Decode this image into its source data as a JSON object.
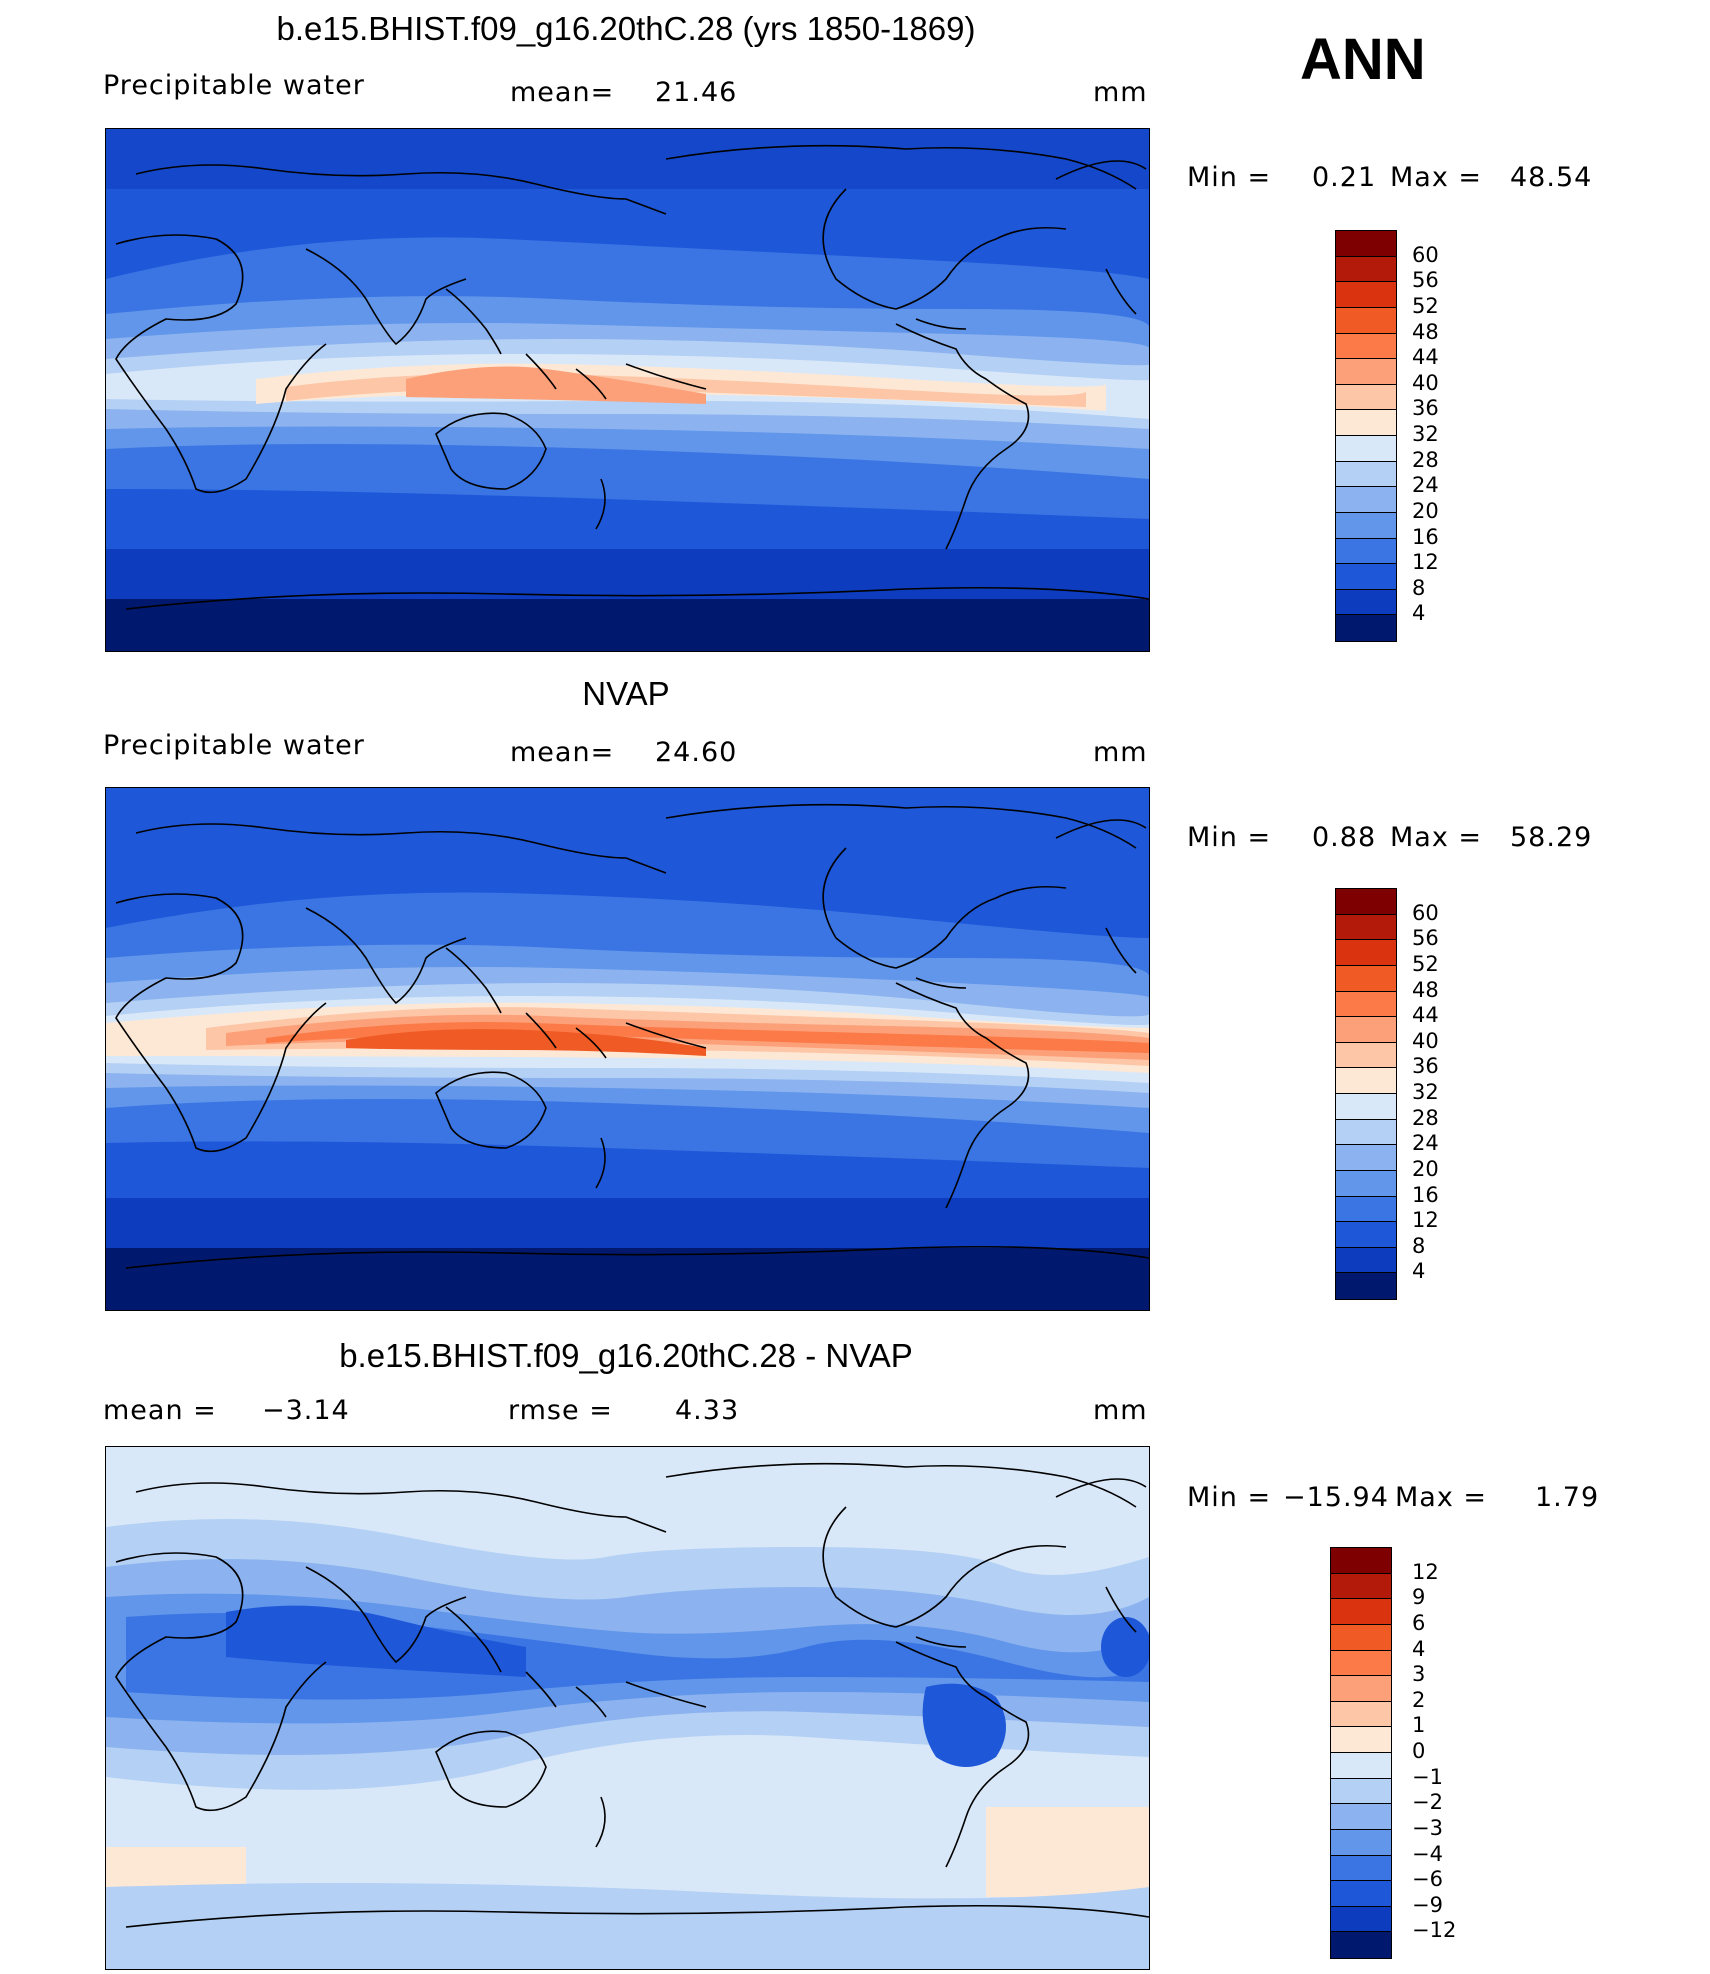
{
  "season": "ANN",
  "panels": [
    {
      "id": "model",
      "title": "b.e15.BHIST.f09_g16.20thC.28 (yrs 1850-1869)",
      "variable": "Precipitable water",
      "mean_label": "mean=",
      "mean_value": "21.46",
      "units": "mm",
      "minmax": {
        "min_label": "Min =",
        "min_value": "0.21",
        "max_label": "Max =",
        "max_value": "48.54"
      },
      "colorbar": {
        "ticks": [
          "60",
          "56",
          "52",
          "48",
          "44",
          "40",
          "36",
          "32",
          "28",
          "24",
          "20",
          "16",
          "12",
          "8",
          "4"
        ],
        "colors": [
          "#7f0000",
          "#b41a0a",
          "#d9330f",
          "#f05a24",
          "#fb7a48",
          "#fca07a",
          "#fdc6a6",
          "#fde8d6",
          "#d9e8f9",
          "#b4d0f4",
          "#8cb3ef",
          "#6196ea",
          "#3a75e3",
          "#1f57d9",
          "#0d3cbf",
          "#00196f"
        ]
      }
    },
    {
      "id": "obs",
      "title": "NVAP",
      "variable": "Precipitable water",
      "mean_label": "mean=",
      "mean_value": "24.60",
      "units": "mm",
      "minmax": {
        "min_label": "Min =",
        "min_value": "0.88",
        "max_label": "Max =",
        "max_value": "58.29"
      },
      "colorbar": {
        "ticks": [
          "60",
          "56",
          "52",
          "48",
          "44",
          "40",
          "36",
          "32",
          "28",
          "24",
          "20",
          "16",
          "12",
          "8",
          "4"
        ],
        "colors": [
          "#7f0000",
          "#b41a0a",
          "#d9330f",
          "#f05a24",
          "#fb7a48",
          "#fca07a",
          "#fdc6a6",
          "#fde8d6",
          "#d9e8f9",
          "#b4d0f4",
          "#8cb3ef",
          "#6196ea",
          "#3a75e3",
          "#1f57d9",
          "#0d3cbf",
          "#00196f"
        ]
      }
    },
    {
      "id": "diff",
      "title": "b.e15.BHIST.f09_g16.20thC.28 - NVAP",
      "mean_label": "mean =",
      "mean_value": "−3.14",
      "rmse_label": "rmse =",
      "rmse_value": "4.33",
      "units": "mm",
      "minmax": {
        "min_label": "Min =",
        "min_value": "−15.94",
        "max_label": "Max =",
        "max_value": "1.79"
      },
      "colorbar": {
        "ticks": [
          "12",
          "9",
          "6",
          "4",
          "3",
          "2",
          "1",
          "0",
          "−1",
          "−2",
          "−3",
          "−4",
          "−6",
          "−9",
          "−12"
        ],
        "colors": [
          "#7f0000",
          "#b41a0a",
          "#d9330f",
          "#f05a24",
          "#fb7a48",
          "#fca07a",
          "#fdc6a6",
          "#fde8d6",
          "#d9e8f9",
          "#b4d0f4",
          "#8cb3ef",
          "#6196ea",
          "#3a75e3",
          "#1f57d9",
          "#0d3cbf",
          "#00196f"
        ]
      }
    }
  ]
}
